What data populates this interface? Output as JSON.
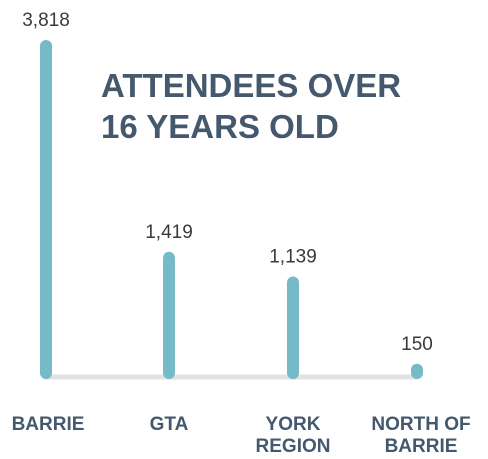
{
  "chart_data": {
    "type": "bar",
    "title_lines": [
      "ATTENDEES OVER",
      "16 YEARS OLD"
    ],
    "categories": [
      {
        "lines": [
          "BARRIE"
        ]
      },
      {
        "lines": [
          "GTA"
        ]
      },
      {
        "lines": [
          "YORK",
          "REGION"
        ]
      },
      {
        "lines": [
          "NORTH OF",
          "BARRIE"
        ]
      }
    ],
    "values": [
      3818,
      1419,
      1139,
      150
    ],
    "value_labels": [
      "3,818",
      "1,419",
      "1,139",
      "150"
    ],
    "ylim": [
      0,
      3818
    ],
    "colors": {
      "bar": "#74bac9",
      "baseline": "#e2e2e2",
      "title": "#44596e",
      "value_text": "#3a3a3a",
      "category_text": "#44596e"
    }
  }
}
